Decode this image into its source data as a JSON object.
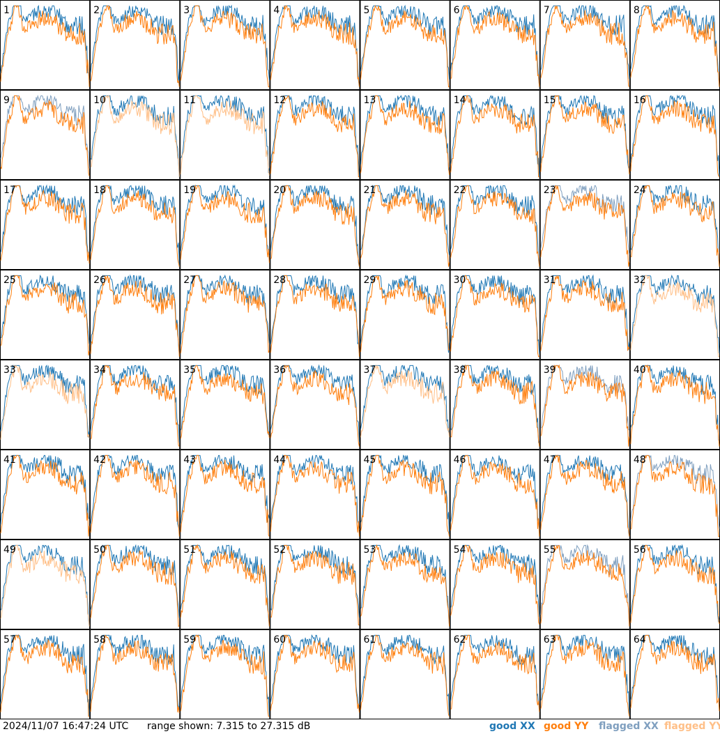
{
  "chart_data": {
    "type": "line",
    "panel_labels": [
      "1",
      "2",
      "3",
      "4",
      "5",
      "6",
      "7",
      "8",
      "9",
      "10",
      "11",
      "12",
      "13",
      "14",
      "15",
      "16",
      "17",
      "18",
      "19",
      "20",
      "21",
      "22",
      "23",
      "24",
      "25",
      "26",
      "27",
      "28",
      "29",
      "30",
      "31",
      "32",
      "33",
      "34",
      "35",
      "36",
      "37",
      "38",
      "39",
      "40",
      "41",
      "42",
      "43",
      "44",
      "45",
      "46",
      "47",
      "48",
      "49",
      "50",
      "51",
      "52",
      "53",
      "54",
      "55",
      "56",
      "57",
      "58",
      "59",
      "60",
      "61",
      "62",
      "63",
      "64"
    ],
    "ylim": [
      7.315,
      27.315
    ],
    "y_unit": "dB",
    "grid": false,
    "series": [
      {
        "name": "good XX",
        "color": "#1f77b4"
      },
      {
        "name": "good YY",
        "color": "#ff7f0e"
      },
      {
        "name": "flagged XX",
        "color": "#7f9fbf"
      },
      {
        "name": "flagged YY",
        "color": "#ffbf87"
      }
    ],
    "flagged_xx_panels": [
      "9",
      "23",
      "39",
      "48",
      "55"
    ],
    "flagged_yy_panels": [
      "10",
      "11",
      "32",
      "33",
      "37",
      "49"
    ]
  },
  "footer": {
    "timestamp": "2024/11/07 16:47:24 UTC",
    "range_text": "range shown: 7.315 to 27.315 dB",
    "legend": [
      {
        "label": "good XX",
        "color": "#1f77b4"
      },
      {
        "label": "good YY",
        "color": "#ff7f0e"
      },
      {
        "label": "flagged XX",
        "color": "#7f9fbf"
      },
      {
        "label": "flagged YY",
        "color": "#ffbf87"
      }
    ]
  }
}
